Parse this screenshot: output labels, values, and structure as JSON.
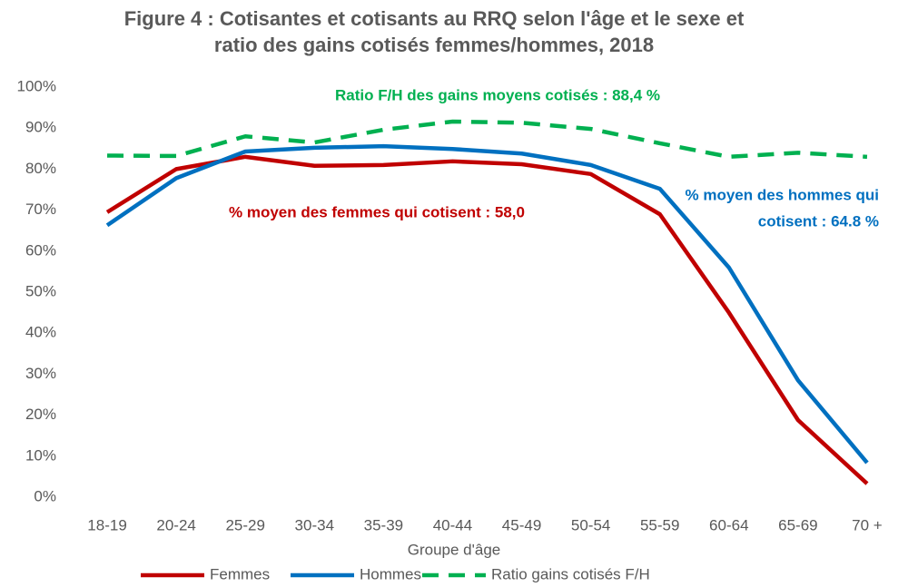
{
  "chart_data": {
    "type": "line",
    "title": [
      "Figure 4 : Cotisantes et cotisants au RRQ selon l'âge et le sexe et",
      "ratio des gains cotisés femmes/hommes, 2018"
    ],
    "x_label": "Groupe d'âge",
    "categories": [
      "18-19",
      "20-24",
      "25-29",
      "30-34",
      "35-39",
      "40-44",
      "45-49",
      "50-54",
      "55-59",
      "60-64",
      "65-69",
      "70 +"
    ],
    "series": [
      {
        "name": "Femmes",
        "color": "#c00000",
        "dash": false,
        "values": [
          69.5,
          80,
          83,
          80.8,
          81,
          81.9,
          81.2,
          78.8,
          69,
          45,
          18.8,
          3.3
        ]
      },
      {
        "name": "Hommes",
        "color": "#0070c0",
        "dash": false,
        "values": [
          66.3,
          77.8,
          84.3,
          85.2,
          85.6,
          84.9,
          83.8,
          81,
          75.2,
          56,
          28.5,
          8.4
        ]
      },
      {
        "name": "Ratio gains cotisés F/H",
        "color": "#00b050",
        "dash": true,
        "values": [
          83.3,
          83.2,
          88,
          86.5,
          89.6,
          91.6,
          91.3,
          89.8,
          86.3,
          83,
          84,
          83
        ]
      }
    ],
    "annotations": [
      {
        "lines": [
          "Ratio F/H des gains moyens cotisés : 88,4 %"
        ],
        "color": "#00b050"
      },
      {
        "lines": [
          "% moyen des femmes qui cotisent : 58,0"
        ],
        "color": "#c00000"
      },
      {
        "lines": [
          "% moyen des hommes qui",
          "cotisent : 64.8 %"
        ],
        "color": "#0070c0"
      }
    ],
    "ylim": [
      0,
      100
    ],
    "yticks": [
      {
        "value": 0,
        "label": "0%"
      },
      {
        "value": 10,
        "label": "10%"
      },
      {
        "value": 20,
        "label": "20%"
      },
      {
        "value": 30,
        "label": "30%"
      },
      {
        "value": 40,
        "label": "40%"
      },
      {
        "value": 50,
        "label": "50%"
      },
      {
        "value": 60,
        "label": "60%"
      },
      {
        "value": 70,
        "label": "70%"
      },
      {
        "value": 80,
        "label": "80%"
      },
      {
        "value": 90,
        "label": "90%"
      },
      {
        "value": 100,
        "label": "100%"
      }
    ],
    "grid": false,
    "legend": "bottom"
  }
}
